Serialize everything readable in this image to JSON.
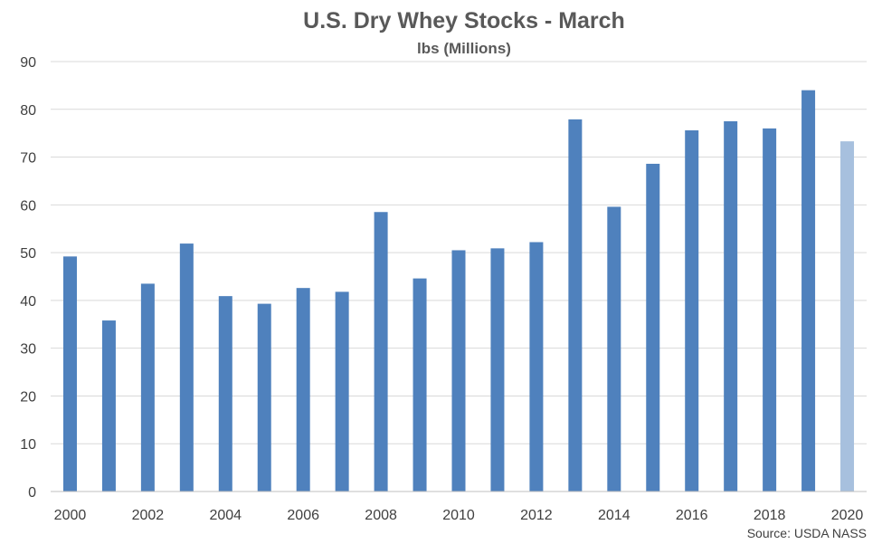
{
  "chart_data": {
    "type": "bar",
    "title": "U.S. Dry Whey Stocks - March",
    "subtitle": "lbs (Millions)",
    "source": "Source: USDA NASS",
    "categories": [
      "2000",
      "2001",
      "2002",
      "2003",
      "2004",
      "2005",
      "2006",
      "2007",
      "2008",
      "2009",
      "2010",
      "2011",
      "2012",
      "2013",
      "2014",
      "2015",
      "2016",
      "2017",
      "2018",
      "2019",
      "2020"
    ],
    "x_tick_labels": [
      "2000",
      "",
      "2002",
      "",
      "2004",
      "",
      "2006",
      "",
      "2008",
      "",
      "2010",
      "",
      "2012",
      "",
      "2014",
      "",
      "2016",
      "",
      "2018",
      "",
      "2020"
    ],
    "values": [
      49.2,
      35.8,
      43.5,
      51.9,
      40.9,
      39.3,
      42.6,
      41.8,
      58.5,
      44.6,
      50.5,
      50.9,
      52.2,
      77.9,
      59.6,
      68.6,
      75.6,
      77.5,
      76.0,
      84.0,
      73.3
    ],
    "y_ticks": [
      0,
      10,
      20,
      30,
      40,
      50,
      60,
      70,
      80,
      90
    ],
    "ylim": [
      0,
      90
    ],
    "grid": true,
    "legend": "none",
    "colors": {
      "bar": "#4f81bd",
      "highlight_bar": "#a7c0de",
      "grid": "#d9d9d9",
      "axis": "#bfbfbf"
    },
    "highlight_category": "2020"
  }
}
